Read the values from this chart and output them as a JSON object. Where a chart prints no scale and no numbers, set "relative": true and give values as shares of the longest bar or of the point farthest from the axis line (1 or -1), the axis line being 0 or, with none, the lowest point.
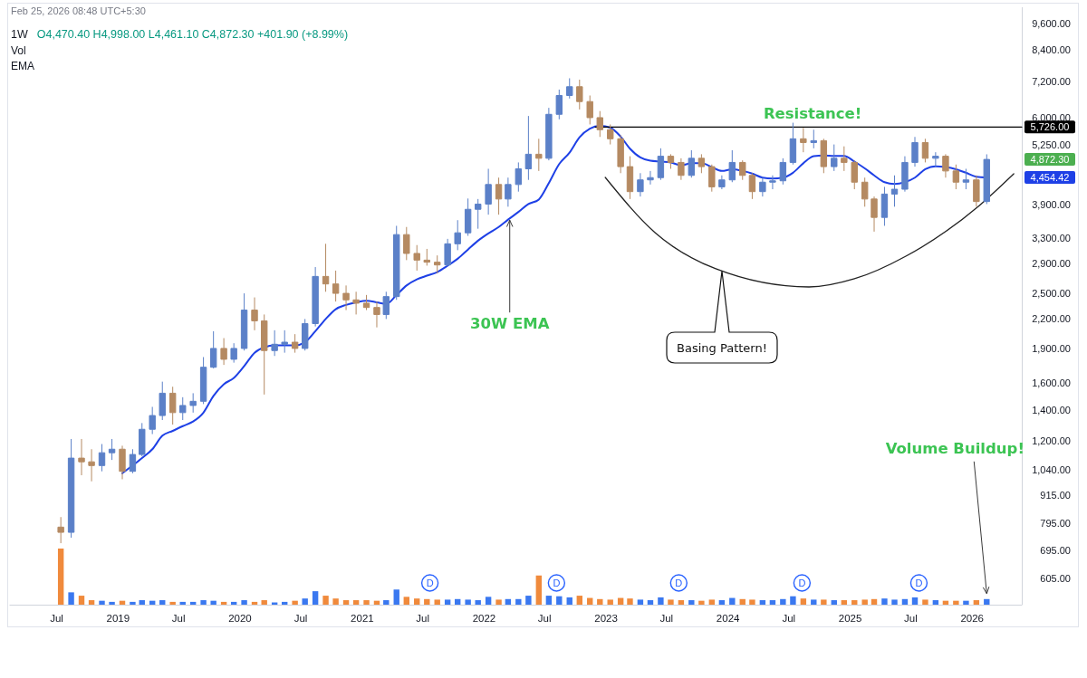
{
  "chart_data": [
    {
      "type": "candlestick",
      "title": "1W",
      "subtitle": "O4,470.40 H4,998.00 L4,461.10 C4,872.30 +401.90 (+8.99%)",
      "log": true,
      "tick_labels": "y",
      "xlim": [
        "2018-02-10",
        "2026-05-31"
      ],
      "ylim": [
        530,
        10400
      ],
      "yticks": [
        {
          "value": 605,
          "label": "605.00"
        },
        {
          "value": 695,
          "label": "695.00"
        },
        {
          "value": 795,
          "label": "795.00"
        },
        {
          "value": 915,
          "label": "915.00"
        },
        {
          "value": 1040,
          "label": "1,040.00"
        },
        {
          "value": 1200,
          "label": "1,200.00"
        },
        {
          "value": 1400,
          "label": "1,400.00"
        },
        {
          "value": 1600,
          "label": "1,600.00"
        },
        {
          "value": 1900,
          "label": "1,900.00"
        },
        {
          "value": 2200,
          "label": "2,200.00"
        },
        {
          "value": 2500,
          "label": "2,500.00"
        },
        {
          "value": 2900,
          "label": "2,900.00"
        },
        {
          "value": 3300,
          "label": "3,300.00"
        },
        {
          "value": 3900,
          "label": "3,900.00"
        },
        {
          "value": 5250,
          "label": "5,250.00"
        },
        {
          "value": 6000,
          "label": "6,000.00"
        },
        {
          "value": 7200,
          "label": "7,200.00"
        },
        {
          "value": 8400,
          "label": "8,400.00"
        },
        {
          "value": 9600,
          "label": "9,600.00"
        }
      ],
      "x": [
        "2018-07-15",
        "2018-08-15",
        "2018-09-15",
        "2018-10-15",
        "2018-11-15",
        "2018-12-15",
        "2019-01-15",
        "2019-02-15",
        "2019-03-15",
        "2019-04-15",
        "2019-05-15",
        "2019-06-15",
        "2019-07-15",
        "2019-08-15",
        "2019-09-15",
        "2019-10-15",
        "2019-11-15",
        "2019-12-15",
        "2020-01-15",
        "2020-02-15",
        "2020-03-15",
        "2020-04-15",
        "2020-05-15",
        "2020-06-15",
        "2020-07-15",
        "2020-08-15",
        "2020-09-15",
        "2020-10-15",
        "2020-11-15",
        "2020-12-15",
        "2021-01-15",
        "2021-02-15",
        "2021-03-15",
        "2021-04-15",
        "2021-05-15",
        "2021-06-15",
        "2021-07-15",
        "2021-08-15",
        "2021-09-15",
        "2021-10-15",
        "2021-11-15",
        "2021-12-15",
        "2022-01-15",
        "2022-02-15",
        "2022-03-15",
        "2022-04-15",
        "2022-05-15",
        "2022-06-15",
        "2022-07-15",
        "2022-08-15",
        "2022-09-15",
        "2022-10-15",
        "2022-11-15",
        "2022-12-15",
        "2023-01-15",
        "2023-02-15",
        "2023-03-15",
        "2023-04-15",
        "2023-05-15",
        "2023-06-15",
        "2023-07-15",
        "2023-08-15",
        "2023-09-15",
        "2023-10-15",
        "2023-11-15",
        "2023-12-15",
        "2024-01-15",
        "2024-02-15",
        "2024-03-15",
        "2024-04-15",
        "2024-05-15",
        "2024-06-15",
        "2024-07-15",
        "2024-08-15",
        "2024-09-15",
        "2024-10-15",
        "2024-11-15",
        "2024-12-15",
        "2025-01-15",
        "2025-02-15",
        "2025-03-15",
        "2025-04-15",
        "2025-05-15",
        "2025-06-15",
        "2025-07-15",
        "2025-08-15",
        "2025-09-15",
        "2025-10-15",
        "2025-11-15",
        "2025-12-15",
        "2026-01-15",
        "2026-02-15"
      ],
      "ohlc": [
        [
          780,
          820,
          720,
          760
        ],
        [
          760,
          1210,
          740,
          1100
        ],
        [
          1100,
          1210,
          1010,
          1080
        ],
        [
          1080,
          1150,
          980,
          1060
        ],
        [
          1060,
          1180,
          1030,
          1130
        ],
        [
          1130,
          1210,
          1090,
          1150
        ],
        [
          1150,
          1170,
          990,
          1030
        ],
        [
          1030,
          1150,
          1020,
          1120
        ],
        [
          1120,
          1310,
          1110,
          1270
        ],
        [
          1270,
          1420,
          1240,
          1360
        ],
        [
          1360,
          1610,
          1330,
          1520
        ],
        [
          1520,
          1570,
          1300,
          1380
        ],
        [
          1380,
          1490,
          1330,
          1430
        ],
        [
          1430,
          1520,
          1380,
          1460
        ],
        [
          1460,
          1820,
          1440,
          1730
        ],
        [
          1730,
          2070,
          1720,
          1900
        ],
        [
          1900,
          2000,
          1750,
          1800
        ],
        [
          1800,
          1950,
          1770,
          1900
        ],
        [
          1900,
          2500,
          1880,
          2300
        ],
        [
          2300,
          2450,
          2080,
          2180
        ],
        [
          2180,
          2250,
          1510,
          1880
        ],
        [
          1880,
          2080,
          1830,
          1940
        ],
        [
          1940,
          2080,
          1860,
          1960
        ],
        [
          1960,
          2040,
          1860,
          1900
        ],
        [
          1900,
          2200,
          1880,
          2150
        ],
        [
          2150,
          2850,
          2120,
          2720
        ],
        [
          2720,
          3200,
          2520,
          2620
        ],
        [
          2620,
          2800,
          2400,
          2500
        ],
        [
          2500,
          2600,
          2300,
          2420
        ],
        [
          2420,
          2520,
          2250,
          2380
        ],
        [
          2380,
          2480,
          2300,
          2330
        ],
        [
          2330,
          2400,
          2110,
          2250
        ],
        [
          2250,
          2520,
          2200,
          2460
        ],
        [
          2460,
          3500,
          2420,
          3350
        ],
        [
          3350,
          3480,
          2950,
          3050
        ],
        [
          3050,
          3180,
          2800,
          2950
        ],
        [
          2950,
          3120,
          2870,
          2920
        ],
        [
          2920,
          3020,
          2760,
          2880
        ],
        [
          2880,
          3280,
          2860,
          3200
        ],
        [
          3200,
          3600,
          3100,
          3380
        ],
        [
          3380,
          4010,
          3330,
          3800
        ],
        [
          3800,
          4000,
          3450,
          3900
        ],
        [
          3900,
          4650,
          3700,
          4300
        ],
        [
          4300,
          4450,
          3700,
          4000
        ],
        [
          4000,
          4450,
          3850,
          4300
        ],
        [
          4300,
          4800,
          4150,
          4650
        ],
        [
          4650,
          6050,
          4400,
          5000
        ],
        [
          5000,
          5400,
          4600,
          4900
        ],
        [
          4900,
          6300,
          4850,
          6100
        ],
        [
          6100,
          6900,
          5950,
          6700
        ],
        [
          6700,
          7300,
          6600,
          7000
        ],
        [
          7000,
          7250,
          6250,
          6500
        ],
        [
          6500,
          6700,
          5800,
          6000
        ],
        [
          6000,
          6200,
          5450,
          5650
        ],
        [
          5650,
          5800,
          5250,
          5400
        ],
        [
          5400,
          5500,
          4550,
          4700
        ],
        [
          4700,
          4950,
          4000,
          4150
        ],
        [
          4150,
          4550,
          4050,
          4400
        ],
        [
          4400,
          4600,
          4300,
          4450
        ],
        [
          4450,
          5150,
          4400,
          4950
        ],
        [
          4950,
          5000,
          4650,
          4800
        ],
        [
          4800,
          4900,
          4400,
          4500
        ],
        [
          4500,
          5100,
          4450,
          4900
        ],
        [
          4900,
          5000,
          4550,
          4700
        ],
        [
          4700,
          4750,
          4150,
          4250
        ],
        [
          4250,
          4500,
          4200,
          4400
        ],
        [
          4400,
          5100,
          4350,
          4800
        ],
        [
          4800,
          4850,
          4400,
          4500
        ],
        [
          4500,
          4550,
          4000,
          4150
        ],
        [
          4150,
          4450,
          4050,
          4350
        ],
        [
          4350,
          4500,
          4200,
          4380
        ],
        [
          4380,
          4900,
          4300,
          4800
        ],
        [
          4800,
          5850,
          4750,
          5400
        ],
        [
          5400,
          5700,
          5050,
          5300
        ],
        [
          5300,
          5650,
          5150,
          5350
        ],
        [
          5350,
          5400,
          4550,
          4700
        ],
        [
          4700,
          5250,
          4600,
          4900
        ],
        [
          4900,
          5200,
          4600,
          4800
        ],
        [
          4800,
          4850,
          4200,
          4350
        ],
        [
          4350,
          4450,
          3850,
          4000
        ],
        [
          4000,
          4050,
          3400,
          3650
        ],
        [
          3650,
          4250,
          3500,
          4100
        ],
        [
          4100,
          4500,
          3850,
          4200
        ],
        [
          4200,
          4950,
          4150,
          4800
        ],
        [
          4800,
          5450,
          4700,
          5300
        ],
        [
          5300,
          5400,
          4800,
          4900
        ],
        [
          4900,
          5050,
          4700,
          4950
        ],
        [
          4950,
          5000,
          4450,
          4600
        ],
        [
          4600,
          4750,
          4200,
          4350
        ],
        [
          4350,
          4650,
          4200,
          4400
        ],
        [
          4400,
          4500,
          3850,
          3950
        ],
        [
          3950,
          4998,
          3900,
          4872.3
        ]
      ],
      "colors": [
        "#b58a62",
        "#5b80c8",
        "#b58a62",
        "#b58a62",
        "#5b80c8",
        "#5b80c8",
        "#b58a62",
        "#5b80c8",
        "#5b80c8",
        "#5b80c8",
        "#5b80c8",
        "#b58a62",
        "#5b80c8",
        "#5b80c8",
        "#5b80c8",
        "#5b80c8",
        "#b58a62",
        "#5b80c8",
        "#5b80c8",
        "#b58a62",
        "#b58a62",
        "#5b80c8",
        "#5b80c8",
        "#b58a62",
        "#5b80c8",
        "#5b80c8",
        "#b58a62",
        "#b58a62",
        "#b58a62",
        "#b58a62",
        "#b58a62",
        "#b58a62",
        "#5b80c8",
        "#5b80c8",
        "#b58a62",
        "#b58a62",
        "#b58a62",
        "#b58a62",
        "#5b80c8",
        "#5b80c8",
        "#5b80c8",
        "#5b80c8",
        "#5b80c8",
        "#b58a62",
        "#5b80c8",
        "#5b80c8",
        "#5b80c8",
        "#b58a62",
        "#5b80c8",
        "#5b80c8",
        "#5b80c8",
        "#b58a62",
        "#b58a62",
        "#b58a62",
        "#b58a62",
        "#b58a62",
        "#b58a62",
        "#5b80c8",
        "#5b80c8",
        "#5b80c8",
        "#b58a62",
        "#b58a62",
        "#5b80c8",
        "#b58a62",
        "#b58a62",
        "#5b80c8",
        "#5b80c8",
        "#b58a62",
        "#b58a62",
        "#5b80c8",
        "#5b80c8",
        "#5b80c8",
        "#5b80c8",
        "#b58a62",
        "#5b80c8",
        "#b58a62",
        "#5b80c8",
        "#b58a62",
        "#b58a62",
        "#b58a62",
        "#b58a62",
        "#5b80c8",
        "#5b80c8",
        "#5b80c8",
        "#5b80c8",
        "#b58a62",
        "#5b80c8",
        "#b58a62",
        "#b58a62",
        "#5b80c8",
        "#b58a62",
        "#5b80c8"
      ],
      "series": [
        {
          "type": "line",
          "color": "#1e40e6",
          "x": [
            "2019-01-15",
            "2019-02-15",
            "2019-03-15",
            "2019-04-15",
            "2019-05-15",
            "2019-06-15",
            "2019-07-15",
            "2019-08-15",
            "2019-09-15",
            "2019-10-15",
            "2019-11-15",
            "2019-12-15",
            "2020-01-15",
            "2020-02-15",
            "2020-03-15",
            "2020-04-15",
            "2020-05-15",
            "2020-06-15",
            "2020-07-15",
            "2020-08-15",
            "2020-09-15",
            "2020-10-15",
            "2020-11-15",
            "2020-12-15",
            "2021-01-15",
            "2021-02-15",
            "2021-03-15",
            "2021-04-15",
            "2021-05-15",
            "2021-06-15",
            "2021-07-15",
            "2021-08-15",
            "2021-09-15",
            "2021-10-15",
            "2021-11-15",
            "2021-12-15",
            "2022-01-15",
            "2022-02-15",
            "2022-03-15",
            "2022-04-15",
            "2022-05-15",
            "2022-06-15",
            "2022-07-15",
            "2022-08-15",
            "2022-09-15",
            "2022-10-15",
            "2022-11-15",
            "2022-12-15",
            "2023-01-15",
            "2023-02-15",
            "2023-03-15",
            "2023-04-15",
            "2023-05-15",
            "2023-06-15",
            "2023-07-15",
            "2023-08-15",
            "2023-09-15",
            "2023-10-15",
            "2023-11-15",
            "2023-12-15",
            "2024-01-15",
            "2024-02-15",
            "2024-03-15",
            "2024-04-15",
            "2024-05-15",
            "2024-06-15",
            "2024-07-15",
            "2024-08-15",
            "2024-09-15",
            "2024-10-15",
            "2024-11-15",
            "2024-12-15",
            "2025-01-15",
            "2025-02-15",
            "2025-03-15",
            "2025-04-15",
            "2025-05-15",
            "2025-06-15",
            "2025-07-15",
            "2025-08-15",
            "2025-09-15",
            "2025-10-15",
            "2025-11-15",
            "2025-12-15",
            "2026-01-15",
            "2026-02-15"
          ],
          "values": [
            1020,
            1060,
            1100,
            1150,
            1230,
            1260,
            1290,
            1320,
            1380,
            1500,
            1590,
            1640,
            1740,
            1860,
            1910,
            1930,
            1930,
            1930,
            1960,
            2070,
            2200,
            2310,
            2360,
            2390,
            2410,
            2390,
            2370,
            2480,
            2600,
            2680,
            2730,
            2780,
            2870,
            2970,
            3110,
            3250,
            3370,
            3480,
            3610,
            3750,
            3900,
            3990,
            4330,
            4760,
            5040,
            5440,
            5680,
            5760,
            5710,
            5460,
            5140,
            4920,
            4840,
            4820,
            4800,
            4730,
            4780,
            4780,
            4690,
            4600,
            4640,
            4600,
            4540,
            4450,
            4430,
            4450,
            4560,
            4780,
            4950,
            4970,
            4960,
            4960,
            4820,
            4660,
            4500,
            4350,
            4310,
            4350,
            4450,
            4640,
            4710,
            4690,
            4640,
            4560,
            4470,
            4454.42
          ]
        },
        {
          "type": "line",
          "color": "#000000",
          "x": [
            "2022-12-01",
            "2026-05-31"
          ],
          "values": [
            5726,
            5726
          ]
        },
        {
          "type": "line",
          "color": "#222222",
          "x": [
            "2022-12-31",
            "2023-05-29",
            "2023-11-27",
            "2024-09-01",
            "2025-01-15",
            "2025-06-18",
            "2026-01-21",
            "2026-05-07"
          ],
          "values": [
            4455,
            3384,
            2825,
            2581,
            2688,
            3009,
            3857,
            4537
          ]
        }
      ],
      "annotations": [
        "Feb 25, 2026 08:48 UTC+5:30",
        "Vol",
        "EMA",
        {
          "text": "30W EMA",
          "x": "2022-03-20",
          "y": 3633
        },
        {
          "text": "Resistance!",
          "x": "2024-09-01",
          "y": 5726
        },
        "Basing Pattern!",
        "5,726.00",
        "4,872.30",
        "4,454.42"
      ]
    },
    {
      "type": "bar",
      "relative": true,
      "tick_labels": "x",
      "xlim": [
        "2018-02-10",
        "2026-05-31"
      ],
      "xticks": [
        {
          "value": "2018-07-01",
          "label": "Jul"
        },
        {
          "value": "2019-01-01",
          "label": "2019"
        },
        {
          "value": "2019-07-01",
          "label": "Jul"
        },
        {
          "value": "2020-01-01",
          "label": "2020"
        },
        {
          "value": "2020-07-01",
          "label": "Jul"
        },
        {
          "value": "2021-01-01",
          "label": "2021"
        },
        {
          "value": "2021-07-01",
          "label": "Jul"
        },
        {
          "value": "2022-01-01",
          "label": "2022"
        },
        {
          "value": "2022-07-01",
          "label": "Jul"
        },
        {
          "value": "2023-01-01",
          "label": "2023"
        },
        {
          "value": "2023-07-01",
          "label": "Jul"
        },
        {
          "value": "2024-01-01",
          "label": "2024"
        },
        {
          "value": "2024-07-01",
          "label": "Jul"
        },
        {
          "value": "2025-01-01",
          "label": "2025"
        },
        {
          "value": "2025-07-01",
          "label": "Jul"
        },
        {
          "value": "2026-01-01",
          "label": "2026"
        }
      ],
      "x": [
        "2018-07-15",
        "2018-08-15",
        "2018-09-15",
        "2018-10-15",
        "2018-11-15",
        "2018-12-15",
        "2019-01-15",
        "2019-02-15",
        "2019-03-15",
        "2019-04-15",
        "2019-05-15",
        "2019-06-15",
        "2019-07-15",
        "2019-08-15",
        "2019-09-15",
        "2019-10-15",
        "2019-11-15",
        "2019-12-15",
        "2020-01-15",
        "2020-02-15",
        "2020-03-15",
        "2020-04-15",
        "2020-05-15",
        "2020-06-15",
        "2020-07-15",
        "2020-08-15",
        "2020-09-15",
        "2020-10-15",
        "2020-11-15",
        "2020-12-15",
        "2021-01-15",
        "2021-02-15",
        "2021-03-15",
        "2021-04-15",
        "2021-05-15",
        "2021-06-15",
        "2021-07-15",
        "2021-08-15",
        "2021-09-15",
        "2021-10-15",
        "2021-11-15",
        "2021-12-15",
        "2022-01-15",
        "2022-02-15",
        "2022-03-15",
        "2022-04-15",
        "2022-05-15",
        "2022-06-15",
        "2022-07-15",
        "2022-08-15",
        "2022-09-15",
        "2022-10-15",
        "2022-11-15",
        "2022-12-15",
        "2023-01-15",
        "2023-02-15",
        "2023-03-15",
        "2023-04-15",
        "2023-05-15",
        "2023-06-15",
        "2023-07-15",
        "2023-08-15",
        "2023-09-15",
        "2023-10-15",
        "2023-11-15",
        "2023-12-15",
        "2024-01-15",
        "2024-02-15",
        "2024-03-15",
        "2024-04-15",
        "2024-05-15",
        "2024-06-15",
        "2024-07-15",
        "2024-08-15",
        "2024-09-15",
        "2024-10-15",
        "2024-11-15",
        "2024-12-15",
        "2025-01-15",
        "2025-02-15",
        "2025-03-15",
        "2025-04-15",
        "2025-05-15",
        "2025-06-15",
        "2025-07-15",
        "2025-08-15",
        "2025-09-15",
        "2025-10-15",
        "2025-11-15",
        "2025-12-15",
        "2026-01-15",
        "2026-02-15"
      ],
      "values": [
        1.0,
        0.22,
        0.16,
        0.08,
        0.07,
        0.05,
        0.07,
        0.05,
        0.08,
        0.07,
        0.08,
        0.05,
        0.05,
        0.05,
        0.08,
        0.07,
        0.05,
        0.05,
        0.08,
        0.05,
        0.08,
        0.04,
        0.05,
        0.07,
        0.11,
        0.24,
        0.16,
        0.11,
        0.08,
        0.08,
        0.08,
        0.07,
        0.08,
        0.27,
        0.14,
        0.11,
        0.1,
        0.09,
        0.09,
        0.1,
        0.09,
        0.08,
        0.14,
        0.09,
        0.1,
        0.1,
        0.16,
        0.52,
        0.16,
        0.15,
        0.13,
        0.16,
        0.12,
        0.1,
        0.09,
        0.12,
        0.11,
        0.09,
        0.08,
        0.13,
        0.09,
        0.08,
        0.08,
        0.07,
        0.09,
        0.08,
        0.12,
        0.1,
        0.09,
        0.08,
        0.08,
        0.1,
        0.15,
        0.11,
        0.09,
        0.09,
        0.08,
        0.08,
        0.08,
        0.09,
        0.1,
        0.11,
        0.09,
        0.1,
        0.13,
        0.09,
        0.08,
        0.07,
        0.07,
        0.07,
        0.08,
        0.1
      ],
      "colors": [
        "#f08a3c",
        "#3a78f0",
        "#f08a3c",
        "#f08a3c",
        "#3a78f0",
        "#3a78f0",
        "#f08a3c",
        "#3a78f0",
        "#3a78f0",
        "#3a78f0",
        "#3a78f0",
        "#f08a3c",
        "#3a78f0",
        "#3a78f0",
        "#3a78f0",
        "#3a78f0",
        "#f08a3c",
        "#3a78f0",
        "#3a78f0",
        "#f08a3c",
        "#f08a3c",
        "#3a78f0",
        "#3a78f0",
        "#f08a3c",
        "#3a78f0",
        "#3a78f0",
        "#f08a3c",
        "#f08a3c",
        "#f08a3c",
        "#f08a3c",
        "#f08a3c",
        "#f08a3c",
        "#3a78f0",
        "#3a78f0",
        "#f08a3c",
        "#f08a3c",
        "#f08a3c",
        "#f08a3c",
        "#3a78f0",
        "#3a78f0",
        "#3a78f0",
        "#3a78f0",
        "#3a78f0",
        "#f08a3c",
        "#3a78f0",
        "#3a78f0",
        "#3a78f0",
        "#f08a3c",
        "#3a78f0",
        "#3a78f0",
        "#3a78f0",
        "#f08a3c",
        "#f08a3c",
        "#f08a3c",
        "#f08a3c",
        "#f08a3c",
        "#f08a3c",
        "#3a78f0",
        "#3a78f0",
        "#3a78f0",
        "#f08a3c",
        "#f08a3c",
        "#3a78f0",
        "#f08a3c",
        "#f08a3c",
        "#3a78f0",
        "#3a78f0",
        "#f08a3c",
        "#f08a3c",
        "#3a78f0",
        "#3a78f0",
        "#3a78f0",
        "#3a78f0",
        "#f08a3c",
        "#3a78f0",
        "#f08a3c",
        "#3a78f0",
        "#f08a3c",
        "#f08a3c",
        "#f08a3c",
        "#f08a3c",
        "#3a78f0",
        "#3a78f0",
        "#3a78f0",
        "#3a78f0",
        "#f08a3c",
        "#3a78f0",
        "#f08a3c",
        "#f08a3c",
        "#3a78f0",
        "#f08a3c",
        "#3a78f0"
      ],
      "annotations": [
        {
          "text": "Volume Buildup!",
          "x": "2026-02-15",
          "y": 0.1
        },
        {
          "text": "D",
          "x": "2021-07-24"
        },
        {
          "text": "D",
          "x": "2022-08-07"
        },
        {
          "text": "D",
          "x": "2023-08-08"
        },
        {
          "text": "D",
          "x": "2024-08-11"
        },
        {
          "text": "D",
          "x": "2025-07-27"
        }
      ]
    }
  ]
}
